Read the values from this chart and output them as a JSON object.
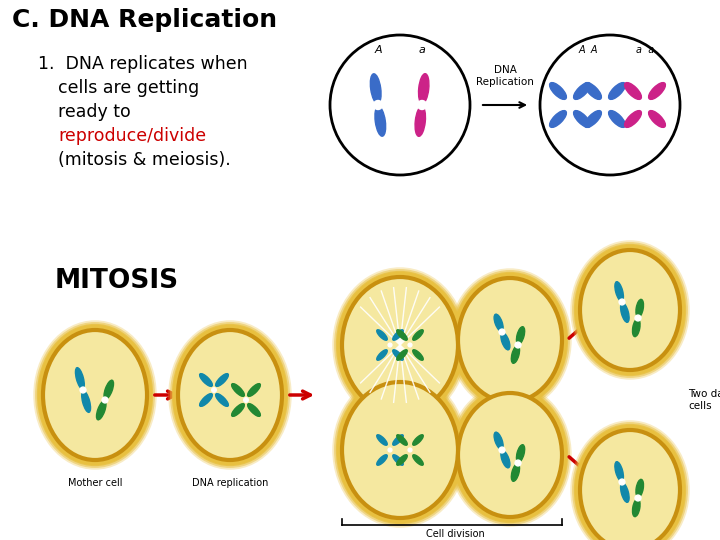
{
  "title": "C. DNA Replication",
  "title_fontsize": 18,
  "title_fontweight": "bold",
  "background_color": "#ffffff",
  "text_color": "#000000",
  "red_color": "#cc0000",
  "point1_fontsize": 12.5,
  "mitosis_label": "MITOSIS",
  "mitosis_fontsize": 19,
  "mitosis_fontweight": "bold",
  "dna_replic_label": "DNA\nReplication",
  "chrom_blue": "#3a6cc8",
  "chrom_pink": "#cc2288",
  "chrom_blue2": "#2266bb",
  "chrom_green": "#228833",
  "chrom_teal": "#1188aa",
  "cell_gold_outer": "#c89010",
  "cell_gold_inner": "#e8c040",
  "cell_fill": "#f5e8a0",
  "cell_fill2": "#f0e090"
}
